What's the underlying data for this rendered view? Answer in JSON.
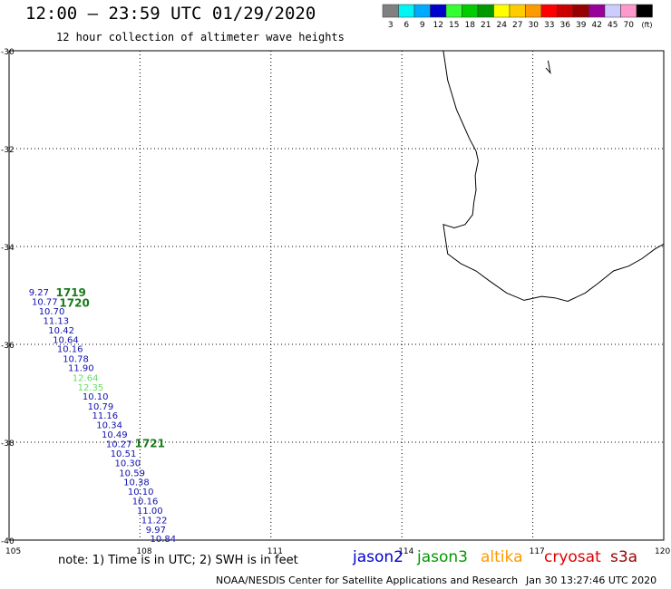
{
  "header": {
    "title": "12:00 – 23:59 UTC 01/29/2020",
    "subtitle": "12 hour collection of altimeter wave heights"
  },
  "color_scale": {
    "unit": "(ft)",
    "bins": [
      {
        "label": "3",
        "color": "#808080"
      },
      {
        "label": "6",
        "color": "#00f5f5"
      },
      {
        "label": "9",
        "color": "#00aaff"
      },
      {
        "label": "12",
        "color": "#0000cc"
      },
      {
        "label": "15",
        "color": "#33ff33"
      },
      {
        "label": "18",
        "color": "#00cc00"
      },
      {
        "label": "21",
        "color": "#009900"
      },
      {
        "label": "24",
        "color": "#ffff00"
      },
      {
        "label": "27",
        "color": "#ffcc00"
      },
      {
        "label": "30",
        "color": "#ff9900"
      },
      {
        "label": "33",
        "color": "#ff0000"
      },
      {
        "label": "36",
        "color": "#cc0000"
      },
      {
        "label": "39",
        "color": "#990000"
      },
      {
        "label": "42",
        "color": "#990099"
      },
      {
        "label": "45",
        "color": "#ccccff"
      },
      {
        "label": "70",
        "color": "#ff99cc"
      },
      {
        "label": "",
        "color": "#000000"
      }
    ]
  },
  "map": {
    "lon_range": [
      105,
      120
    ],
    "lat_range": [
      -40,
      -30
    ],
    "grid": true,
    "lon_ticks": [
      "105",
      "108",
      "111",
      "114",
      "117",
      "120"
    ],
    "lat_ticks": [
      "-30",
      "-32",
      "-34",
      "-36",
      "-38",
      "-40"
    ]
  },
  "observations": [
    {
      "lon": 105.45,
      "lat": -35.0,
      "swh": "9.27",
      "color": "#1010b0"
    },
    {
      "lon": 105.52,
      "lat": -35.19,
      "swh": "10.77",
      "color": "#1010b0"
    },
    {
      "lon": 105.68,
      "lat": -35.39,
      "swh": "10.70",
      "color": "#1010b0"
    },
    {
      "lon": 105.78,
      "lat": -35.58,
      "swh": "11.13",
      "color": "#1010b0"
    },
    {
      "lon": 105.9,
      "lat": -35.78,
      "swh": "10.42",
      "color": "#1010b0"
    },
    {
      "lon": 106.0,
      "lat": -35.97,
      "swh": "10.64",
      "color": "#1010b0"
    },
    {
      "lon": 106.1,
      "lat": -36.16,
      "swh": "10.16",
      "color": "#1010b0"
    },
    {
      "lon": 106.23,
      "lat": -36.36,
      "swh": "10.78",
      "color": "#1010b0"
    },
    {
      "lon": 106.35,
      "lat": -36.55,
      "swh": "11.90",
      "color": "#1010b0"
    },
    {
      "lon": 106.45,
      "lat": -36.75,
      "swh": "12.64",
      "color": "#66dd66"
    },
    {
      "lon": 106.57,
      "lat": -36.94,
      "swh": "12.35",
      "color": "#66dd66"
    },
    {
      "lon": 106.68,
      "lat": -37.13,
      "swh": "10.10",
      "color": "#1010b0"
    },
    {
      "lon": 106.8,
      "lat": -37.33,
      "swh": "10.79",
      "color": "#1010b0"
    },
    {
      "lon": 106.9,
      "lat": -37.52,
      "swh": "11.16",
      "color": "#1010b0"
    },
    {
      "lon": 107.0,
      "lat": -37.71,
      "swh": "10.34",
      "color": "#1010b0"
    },
    {
      "lon": 107.12,
      "lat": -37.91,
      "swh": "10.49",
      "color": "#1010b0"
    },
    {
      "lon": 107.22,
      "lat": -38.1,
      "swh": "10.27",
      "color": "#1010b0"
    },
    {
      "lon": 107.32,
      "lat": -38.3,
      "swh": "10.51",
      "color": "#1010b0"
    },
    {
      "lon": 107.42,
      "lat": -38.49,
      "swh": "10.30",
      "color": "#1010b0"
    },
    {
      "lon": 107.52,
      "lat": -38.69,
      "swh": "10.59",
      "color": "#1010b0"
    },
    {
      "lon": 107.62,
      "lat": -38.88,
      "swh": "10.38",
      "color": "#1010b0"
    },
    {
      "lon": 107.72,
      "lat": -39.07,
      "swh": "10.10",
      "color": "#1010b0"
    },
    {
      "lon": 107.82,
      "lat": -39.27,
      "swh": "10.16",
      "color": "#1010b0"
    },
    {
      "lon": 107.93,
      "lat": -39.46,
      "swh": "11.00",
      "color": "#1010b0"
    },
    {
      "lon": 108.03,
      "lat": -39.66,
      "swh": "11.22",
      "color": "#1010b0"
    },
    {
      "lon": 108.13,
      "lat": -39.85,
      "swh": "9.97",
      "color": "#1010b0"
    },
    {
      "lon": 108.23,
      "lat": -40.04,
      "swh": "10.84",
      "color": "#1010b0"
    }
  ],
  "time_marks": [
    {
      "lon": 106.07,
      "lat": -35.02,
      "text": "1719",
      "color": "#1a7a1a"
    },
    {
      "lon": 106.15,
      "lat": -35.23,
      "text": "1720",
      "color": "#1a7a1a"
    },
    {
      "lon": 107.88,
      "lat": -38.1,
      "text": "1721",
      "color": "#1a7a1a"
    }
  ],
  "coastline": {
    "color": "#000000",
    "mainland": [
      [
        114.95,
        -30.0
      ],
      [
        115.0,
        -30.3
      ],
      [
        115.05,
        -30.6
      ],
      [
        115.15,
        -30.9
      ],
      [
        115.25,
        -31.2
      ],
      [
        115.4,
        -31.5
      ],
      [
        115.55,
        -31.8
      ],
      [
        115.7,
        -32.05
      ],
      [
        115.75,
        -32.25
      ],
      [
        115.68,
        -32.55
      ],
      [
        115.7,
        -32.85
      ],
      [
        115.65,
        -33.1
      ],
      [
        115.62,
        -33.35
      ],
      [
        115.45,
        -33.55
      ],
      [
        115.2,
        -33.62
      ],
      [
        114.95,
        -33.55
      ],
      [
        115.0,
        -33.85
      ],
      [
        115.05,
        -34.15
      ],
      [
        115.35,
        -34.35
      ],
      [
        115.7,
        -34.5
      ],
      [
        116.0,
        -34.7
      ],
      [
        116.4,
        -34.95
      ],
      [
        116.8,
        -35.1
      ],
      [
        117.2,
        -35.02
      ],
      [
        117.5,
        -35.05
      ],
      [
        117.8,
        -35.12
      ],
      [
        118.2,
        -34.95
      ],
      [
        118.5,
        -34.75
      ],
      [
        118.85,
        -34.5
      ],
      [
        119.2,
        -34.4
      ],
      [
        119.5,
        -34.25
      ],
      [
        119.8,
        -34.05
      ],
      [
        120.0,
        -33.95
      ]
    ],
    "island": [
      [
        117.35,
        -30.2
      ],
      [
        117.4,
        -30.45
      ],
      [
        117.3,
        -30.35
      ]
    ]
  },
  "notes": {
    "text": "note:  1) Time is in UTC; 2) SWH is in feet"
  },
  "satellites": [
    {
      "name": "jason2",
      "color": "#0000cc"
    },
    {
      "name": "jason3",
      "color": "#009900"
    },
    {
      "name": "altika",
      "color": "#ff9900"
    },
    {
      "name": "cryosat",
      "color": "#dd0000"
    },
    {
      "name": "s3a",
      "color": "#990000"
    }
  ],
  "footer": {
    "credit": "NOAA/NESDIS Center for Satellite Applications and Research",
    "timestamp": "Jan 30 13:27:46 UTC 2020"
  }
}
